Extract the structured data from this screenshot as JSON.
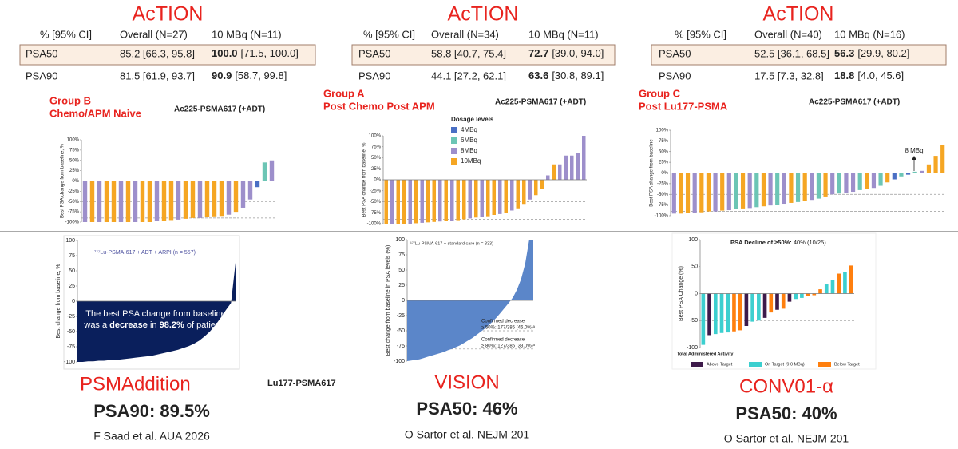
{
  "studies": [
    {
      "title": "AcTION",
      "header": [
        "% [95% CI]",
        "Overall (N=27)",
        "10 MBq (N=11)"
      ],
      "rows": [
        {
          "label": "PSA50",
          "overall": "85.2 [66.3, 95.8]",
          "dose_value": "100.0",
          "dose_ci": "[71.5, 100.0]",
          "highlight": true
        },
        {
          "label": "PSA90",
          "overall": "81.5 [61.9, 93.7]",
          "dose_value": "90.9",
          "dose_ci": "[58.7, 99.8]",
          "highlight": false
        }
      ]
    },
    {
      "title": "AcTION",
      "header": [
        "% [95% CI]",
        "Overall (N=34)",
        "10 MBq (N=11)"
      ],
      "rows": [
        {
          "label": "PSA50",
          "overall": "58.8 [40.7, 75.4]",
          "dose_value": "72.7",
          "dose_ci": "[39.0, 94.0]",
          "highlight": true
        },
        {
          "label": "PSA90",
          "overall": "44.1 [27.2, 62.1]",
          "dose_value": "63.6",
          "dose_ci": "[30.8, 89.1]",
          "highlight": false
        }
      ]
    },
    {
      "title": "AcTION",
      "header": [
        "% [95% CI]",
        "Overall (N=40)",
        "10 MBq (N=16)"
      ],
      "rows": [
        {
          "label": "PSA50",
          "overall": "52.5 [36.1, 68.5]",
          "dose_value": "56.3",
          "dose_ci": "[29.9, 80.2]",
          "highlight": true
        },
        {
          "label": "PSA90",
          "overall": "17.5 [7.3, 32.8]",
          "dose_value": "18.8",
          "dose_ci": "[4.0, 45.6]",
          "highlight": false
        }
      ]
    }
  ],
  "chart_data": [
    {
      "type": "bar",
      "group_label": [
        "Group B",
        "Chemo/APM Naive"
      ],
      "subtitle": "Ac225-PSMA617 (+ADT)",
      "ylabel": "Best PSA change from baseline, %",
      "values": [
        -100,
        -100,
        -100,
        -100,
        -100,
        -100,
        -100,
        -100,
        -100,
        -100,
        -98,
        -97,
        -95,
        -94,
        -92,
        -90,
        -90,
        -88,
        -86,
        -85,
        -82,
        -75,
        -65,
        -45,
        -15,
        45,
        50
      ],
      "colors": [
        "#9d8fcb",
        "#f5a623",
        "#9d8fcb",
        "#f5a623",
        "#f5a623",
        "#9d8fcb",
        "#f5a623",
        "#9d8fcb",
        "#f5a623",
        "#f5a623",
        "#9d8fcb",
        "#f5a623",
        "#f5a623",
        "#9d8fcb",
        "#f5a623",
        "#f5a623",
        "#9d8fcb",
        "#f5a623",
        "#f5a623",
        "#f5a623",
        "#9d8fcb",
        "#f5a623",
        "#9d8fcb",
        "#9d8fcb",
        "#4a6fc4",
        "#6cc5b5",
        "#9d8fcb"
      ],
      "ylim": [
        -100,
        100
      ],
      "yticks": [
        {
          "value": 100,
          "label": "100%"
        },
        {
          "value": 75,
          "label": "75%"
        },
        {
          "value": 50,
          "label": "50%"
        },
        {
          "value": 25,
          "label": "25%"
        },
        {
          "value": 0,
          "label": "0%"
        },
        {
          "value": -25,
          "label": "-25%"
        },
        {
          "value": -50,
          "label": "-50%"
        },
        {
          "value": -75,
          "label": "-75%"
        },
        {
          "value": -100,
          "label": "-100%"
        }
      ],
      "reference_lines": [
        -50,
        -90
      ]
    },
    {
      "type": "bar",
      "group_label": [
        "Group A",
        "Post Chemo Post APM"
      ],
      "subtitle": "Ac225-PSMA617 (+ADT)",
      "ylabel": "Best PSA change from baseline, %",
      "values": [
        -100,
        -100,
        -100,
        -100,
        -100,
        -99,
        -98,
        -97,
        -96,
        -95,
        -94,
        -93,
        -92,
        -90,
        -88,
        -86,
        -85,
        -83,
        -80,
        -78,
        -75,
        -70,
        -65,
        -55,
        -45,
        -35,
        -20,
        10,
        35,
        35,
        55,
        55,
        60,
        100
      ],
      "colors": [
        "#f5a623",
        "#9d8fcb",
        "#f5a623",
        "#f5a623",
        "#9d8fcb",
        "#f5a623",
        "#9d8fcb",
        "#f5a623",
        "#f5a623",
        "#9d8fcb",
        "#f5a623",
        "#9d8fcb",
        "#f5a623",
        "#f5a623",
        "#9d8fcb",
        "#f5a623",
        "#9d8fcb",
        "#f5a623",
        "#f5a623",
        "#9d8fcb",
        "#f5a623",
        "#9d8fcb",
        "#f5a623",
        "#f5a623",
        "#9d8fcb",
        "#f5a623",
        "#f5a623",
        "#9d8fcb",
        "#f5a623",
        "#9d8fcb",
        "#9d8fcb",
        "#9d8fcb",
        "#9d8fcb",
        "#9d8fcb"
      ],
      "legend_title": "Dosage levels",
      "legend": [
        {
          "name": "4MBq",
          "color": "#4a6fc4"
        },
        {
          "name": "6MBq",
          "color": "#6cc5b5"
        },
        {
          "name": "8MBq",
          "color": "#9d8fcb"
        },
        {
          "name": "10MBq",
          "color": "#f5a623"
        }
      ],
      "ylim": [
        -100,
        100
      ],
      "yticks": [
        {
          "value": 100,
          "label": "100%"
        },
        {
          "value": 75,
          "label": "75%"
        },
        {
          "value": 50,
          "label": "50%"
        },
        {
          "value": 25,
          "label": "25%"
        },
        {
          "value": 0,
          "label": "0%"
        },
        {
          "value": -25,
          "label": "-25%"
        },
        {
          "value": -50,
          "label": "-50%"
        },
        {
          "value": -75,
          "label": "-75%"
        },
        {
          "value": -100,
          "label": "-100%"
        }
      ],
      "reference_lines": [
        -50,
        -90
      ]
    },
    {
      "type": "bar",
      "group_label": [
        "Group C",
        "Post Lu177-PSMA"
      ],
      "subtitle": "Ac225-PSMA617 (+ADT)",
      "ylabel": "Best PSA change from baseline",
      "values": [
        -95,
        -95,
        -94,
        -93,
        -92,
        -90,
        -90,
        -88,
        -87,
        -85,
        -83,
        -82,
        -80,
        -78,
        -76,
        -74,
        -72,
        -70,
        -68,
        -66,
        -63,
        -60,
        -55,
        -50,
        -48,
        -46,
        -44,
        -40,
        -37,
        -35,
        -30,
        -22,
        -15,
        -8,
        -4,
        3,
        5,
        20,
        40,
        65
      ],
      "colors": [
        "#9d8fcb",
        "#f5a623",
        "#f5a623",
        "#9d8fcb",
        "#f5a623",
        "#f5a623",
        "#9d8fcb",
        "#f5a623",
        "#9d8fcb",
        "#6cc5b5",
        "#f5a623",
        "#9d8fcb",
        "#6cc5b5",
        "#f5a623",
        "#9d8fcb",
        "#6cc5b5",
        "#9d8fcb",
        "#f5a623",
        "#6cc5b5",
        "#f5a623",
        "#9d8fcb",
        "#6cc5b5",
        "#f5a623",
        "#9d8fcb",
        "#6cc5b5",
        "#9d8fcb",
        "#9d8fcb",
        "#6cc5b5",
        "#f5a623",
        "#9d8fcb",
        "#6cc5b5",
        "#f5a623",
        "#4a6fc4",
        "#6cc5b5",
        "#4a6fc4",
        "#6cc5b5",
        "#9d8fcb",
        "#f5a623",
        "#f5a623",
        "#f5a623"
      ],
      "annotation": "8 MBq",
      "ylim": [
        -100,
        100
      ],
      "yticks": [
        {
          "value": 100,
          "label": "100%"
        },
        {
          "value": 75,
          "label": "75%"
        },
        {
          "value": 50,
          "label": "50%"
        },
        {
          "value": 25,
          "label": "25%"
        },
        {
          "value": 0,
          "label": "0%"
        },
        {
          "value": -25,
          "label": "-25%"
        },
        {
          "value": -50,
          "label": "-50%"
        },
        {
          "value": -75,
          "label": "-75%"
        },
        {
          "value": -100,
          "label": "-100%"
        }
      ],
      "reference_lines": [
        -50,
        -90
      ]
    },
    {
      "type": "area",
      "ylabel": "Best change from baseline, %",
      "legend_text": "¹⁷⁷Lu-PSMA-617 + ADT + ARPI (n = 557)",
      "color": "#0a1f5c",
      "values": [
        -100,
        -100,
        -99,
        -99,
        -98,
        -98,
        -97,
        -97,
        -96,
        -95,
        -94,
        -93,
        -92,
        -91,
        -90,
        -88,
        -86,
        -84,
        -82,
        -80,
        -77,
        -74,
        -70,
        -65,
        -58,
        -50,
        -40,
        -28,
        -15,
        -3,
        75
      ],
      "annotation_parts": [
        {
          "text": "The best PSA change from baseline was a ",
          "bold": false
        },
        {
          "text": "decrease",
          "bold": true
        },
        {
          "text": " in ",
          "bold": false
        },
        {
          "text": "98.2%",
          "bold": true
        },
        {
          "text": " of patients",
          "bold": false
        }
      ],
      "ylim": [
        -100,
        100
      ],
      "yticks": [
        100,
        75,
        50,
        25,
        0,
        -25,
        -50,
        -75,
        -100
      ],
      "reference_lines": []
    },
    {
      "type": "area",
      "ylabel": "Best change from baseline in PSA levels (%)",
      "legend_text": "¹⁷⁷Lu-PSMA-617 + standard care (n = 333)",
      "color": "#5b86c9",
      "values": [
        -100,
        -99,
        -98,
        -97,
        -95,
        -93,
        -91,
        -89,
        -87,
        -85,
        -82,
        -80,
        -77,
        -74,
        -70,
        -66,
        -62,
        -57,
        -52,
        -47,
        -41,
        -35,
        -28,
        -20,
        -12,
        -4,
        5,
        18,
        35,
        60,
        100,
        100
      ],
      "annotations": [
        [
          "Confirmed decrease",
          "≥ 50%: 177/385 (46.0%)ᵃ"
        ],
        [
          "Confirmed decrease",
          "≥ 80%: 127/385 (33.0%)ᵃ"
        ]
      ],
      "ylim": [
        -100,
        100
      ],
      "yticks": [
        100,
        75,
        50,
        25,
        0,
        -25,
        -50,
        -75,
        -100
      ],
      "reference_lines": [
        -50,
        -80
      ]
    },
    {
      "type": "bar",
      "ylabel": "Best PSA Change (%)",
      "xlabel": "Total Administered Activity",
      "title_parts": [
        {
          "text": "PSA Decline of ≥50%:",
          "bold": true
        },
        {
          "text": " 40% (10/25)",
          "bold": false
        }
      ],
      "values": [
        -95,
        -77,
        -75,
        -73,
        -72,
        -70,
        -68,
        -60,
        -52,
        -50,
        -45,
        -35,
        -30,
        -28,
        -15,
        -10,
        -8,
        -5,
        -3,
        8,
        17,
        25,
        37,
        40,
        52
      ],
      "colors": [
        "#3ccfcf",
        "#3d1a4a",
        "#3ccfcf",
        "#3ccfcf",
        "#3ccfcf",
        "#ff7f0e",
        "#ff7f0e",
        "#3d1a4a",
        "#3ccfcf",
        "#3ccfcf",
        "#3d1a4a",
        "#ff7f0e",
        "#3d1a4a",
        "#ff7f0e",
        "#3d1a4a",
        "#3ccfcf",
        "#3ccfcf",
        "#ff7f0e",
        "#ff7f0e",
        "#ff7f0e",
        "#3ccfcf",
        "#3ccfcf",
        "#ff7f0e",
        "#3ccfcf",
        "#ff7f0e"
      ],
      "legend": [
        {
          "name": "Above Target",
          "color": "#3d1a4a"
        },
        {
          "name": "On Target (9.0 MBq)",
          "color": "#3ccfcf"
        },
        {
          "name": "Below Target",
          "color": "#ff7f0e"
        }
      ],
      "ylim": [
        -100,
        100
      ],
      "yticks": [
        100,
        50,
        0,
        -50,
        -100
      ],
      "reference_lines": [
        -50
      ]
    }
  ],
  "bottom": [
    {
      "name": "PSMAddition",
      "result": "PSA90: 89.5%",
      "citation": "F Saad et al. AUA 2026",
      "agent": "Lu177-PSMA617"
    },
    {
      "name": "VISION",
      "result": "PSA50: 46%",
      "citation": "O Sartor et al. NEJM 201"
    },
    {
      "name": "CONV01-α",
      "result": "PSA50: 40%",
      "citation": "O Sartor et al. NEJM 201"
    }
  ]
}
